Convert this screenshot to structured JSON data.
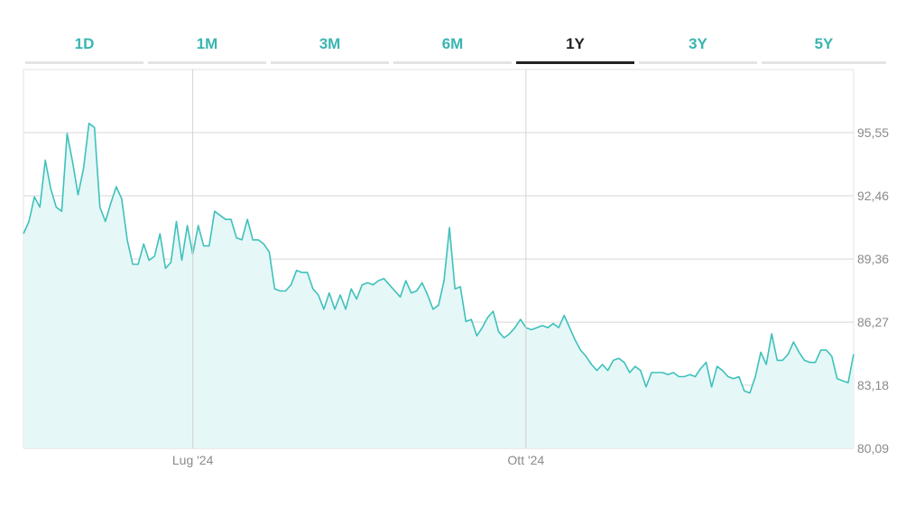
{
  "tabs": {
    "items": [
      "1D",
      "1M",
      "3M",
      "6M",
      "1Y",
      "3Y",
      "5Y"
    ],
    "active": "1Y",
    "accent_color": "#3ab5b0",
    "active_color": "#222222"
  },
  "chart_data": {
    "type": "area",
    "line_color": "#3ec1bb",
    "fill_color": "#e6f7f7",
    "ylim": [
      80.09,
      98.0
    ],
    "y_ticks": [
      {
        "value": 95.55,
        "label": "95,55"
      },
      {
        "value": 92.46,
        "label": "92,46"
      },
      {
        "value": 89.36,
        "label": "89,36"
      },
      {
        "value": 86.27,
        "label": "86,27"
      },
      {
        "value": 83.18,
        "label": "83,18"
      },
      {
        "value": 80.09,
        "label": "80,09"
      }
    ],
    "x_ticks": [
      {
        "index": 31,
        "label": "Lug '24"
      },
      {
        "index": 92,
        "label": "Ott '24"
      }
    ],
    "values": [
      90.6,
      91.2,
      92.4,
      91.9,
      94.2,
      92.8,
      91.9,
      91.7,
      95.5,
      94.1,
      92.5,
      93.8,
      96.0,
      95.8,
      91.9,
      91.2,
      92.1,
      92.9,
      92.3,
      90.3,
      89.1,
      89.1,
      90.1,
      89.3,
      89.5,
      90.6,
      88.9,
      89.2,
      91.2,
      89.3,
      91.0,
      89.6,
      91.0,
      90.0,
      90.0,
      91.7,
      91.5,
      91.3,
      91.3,
      90.4,
      90.3,
      91.3,
      90.3,
      90.3,
      90.1,
      89.7,
      87.9,
      87.8,
      87.8,
      88.1,
      88.8,
      88.7,
      88.7,
      87.9,
      87.6,
      86.9,
      87.7,
      86.9,
      87.6,
      86.9,
      87.9,
      87.4,
      88.1,
      88.2,
      88.1,
      88.3,
      88.4,
      88.1,
      87.8,
      87.5,
      88.3,
      87.7,
      87.8,
      88.2,
      87.6,
      86.9,
      87.1,
      88.3,
      90.9,
      87.9,
      88.0,
      86.3,
      86.4,
      85.6,
      86.0,
      86.5,
      86.8,
      85.8,
      85.5,
      85.7,
      86.0,
      86.4,
      86.0,
      85.9,
      86.0,
      86.1,
      86.0,
      86.2,
      86.0,
      86.6,
      86.0,
      85.4,
      84.9,
      84.6,
      84.2,
      83.9,
      84.2,
      83.9,
      84.4,
      84.5,
      84.3,
      83.8,
      84.1,
      83.9,
      83.1,
      83.8,
      83.8,
      83.8,
      83.7,
      83.8,
      83.6,
      83.6,
      83.7,
      83.6,
      84.0,
      84.3,
      83.1,
      84.1,
      83.9,
      83.6,
      83.5,
      83.6,
      82.9,
      82.8,
      83.6,
      84.8,
      84.2,
      85.7,
      84.4,
      84.4,
      84.7,
      85.3,
      84.8,
      84.4,
      84.3,
      84.3,
      84.9,
      84.9,
      84.6,
      83.5,
      83.4,
      83.3,
      84.7
    ]
  }
}
